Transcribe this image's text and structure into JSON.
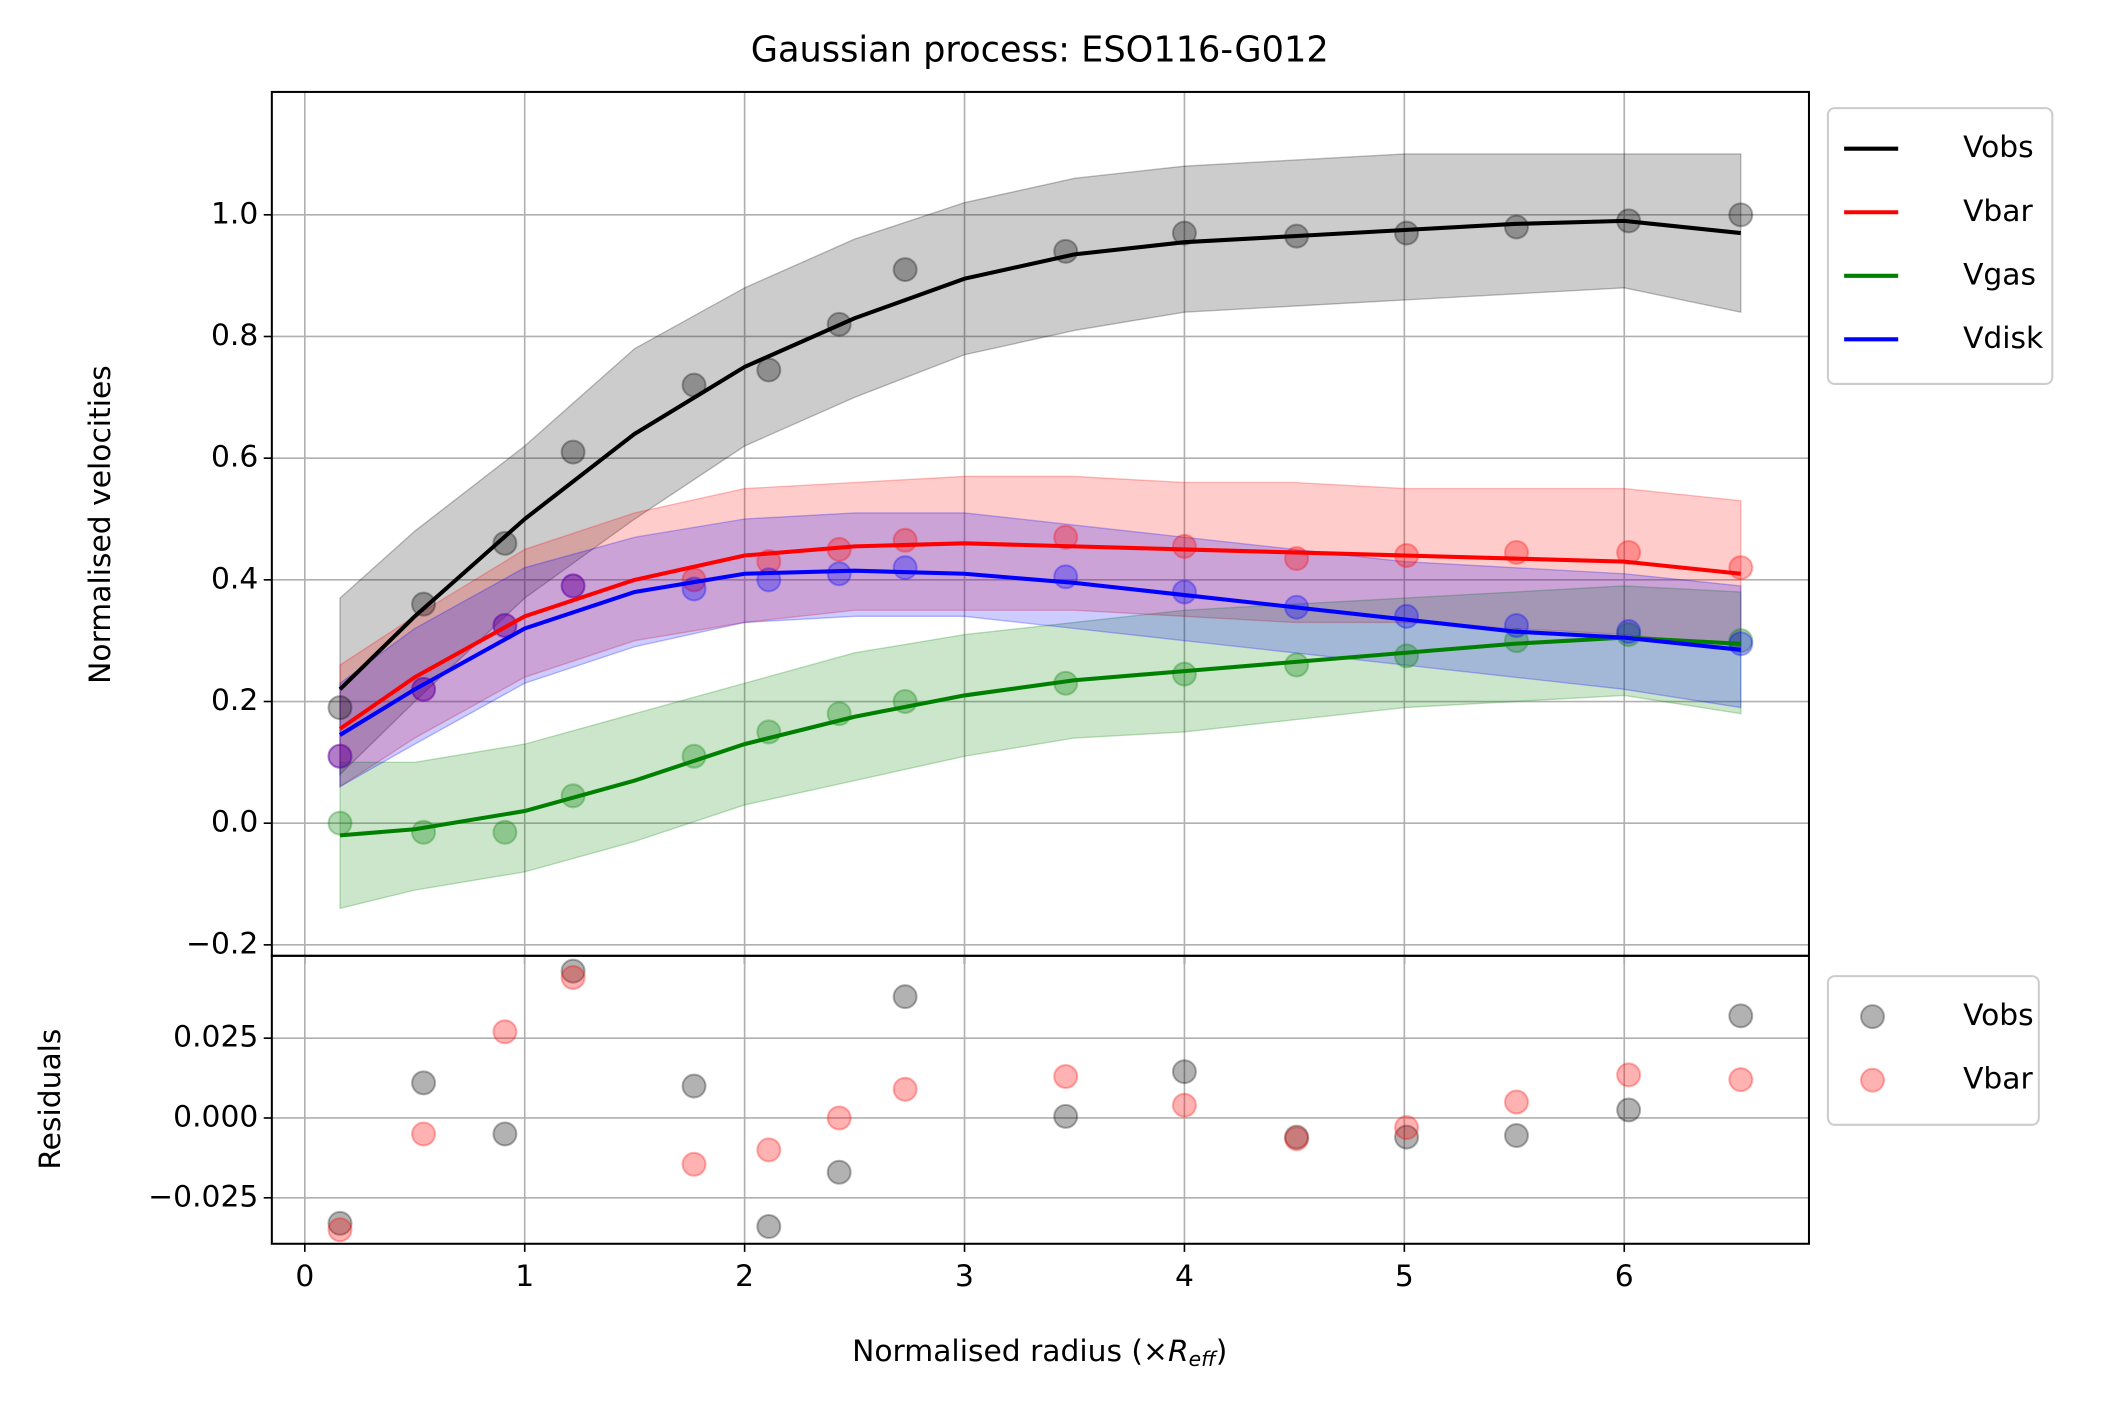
{
  "chart_data": [
    {
      "type": "line",
      "title": "Gaussian process: ESO116-G012",
      "ylabel": "Normalised velocities",
      "xlim": [
        -0.15,
        6.84
      ],
      "ylim": [
        -0.218,
        1.202
      ],
      "xticks": [
        0,
        1,
        2,
        3,
        4,
        5,
        6
      ],
      "yticks": [
        {
          "value": -0.2,
          "label": "−0.2"
        },
        {
          "value": 0,
          "label": "0.0"
        },
        {
          "value": 0.2,
          "label": "0.2"
        },
        {
          "value": 0.4,
          "label": "0.4"
        },
        {
          "value": 0.6,
          "label": "0.6"
        },
        {
          "value": 0.8,
          "label": "0.8"
        },
        {
          "value": 1.0,
          "label": "1.0"
        }
      ],
      "grid": true,
      "legend": "outside-upper-right",
      "x": [
        0.16,
        0.54,
        0.91,
        1.22,
        1.77,
        2.11,
        2.43,
        2.73,
        3.46,
        4.0,
        4.51,
        5.01,
        5.51,
        6.02,
        6.53
      ],
      "curve_x": [
        0.16,
        0.5,
        1,
        1.5,
        2,
        2.5,
        3,
        3.5,
        4,
        4.5,
        5,
        5.5,
        6,
        6.53
      ],
      "series": [
        {
          "name": "Vobs",
          "color": "#000000",
          "values": [
            0.19,
            0.36,
            0.46,
            0.61,
            0.72,
            0.745,
            0.82,
            0.91,
            0.94,
            0.97,
            0.965,
            0.97,
            0.98,
            0.99,
            1.0
          ],
          "mean": [
            0.22,
            0.34,
            0.5,
            0.64,
            0.75,
            0.83,
            0.895,
            0.935,
            0.955,
            0.965,
            0.975,
            0.985,
            0.99,
            0.97
          ],
          "upper": [
            0.37,
            0.48,
            0.62,
            0.78,
            0.88,
            0.96,
            1.02,
            1.06,
            1.08,
            1.09,
            1.1,
            1.1,
            1.1,
            1.1
          ],
          "lower": [
            0.08,
            0.2,
            0.37,
            0.5,
            0.62,
            0.7,
            0.77,
            0.81,
            0.84,
            0.85,
            0.86,
            0.87,
            0.88,
            0.84
          ]
        },
        {
          "name": "Vbar",
          "color": "#ff0000",
          "values": [
            0.11,
            0.22,
            0.325,
            0.39,
            0.4,
            0.43,
            0.45,
            0.465,
            0.47,
            0.455,
            0.435,
            0.44,
            0.445,
            0.445,
            0.42
          ],
          "mean": [
            0.155,
            0.24,
            0.34,
            0.4,
            0.44,
            0.455,
            0.46,
            0.455,
            0.45,
            0.445,
            0.44,
            0.435,
            0.43,
            0.41
          ],
          "upper": [
            0.26,
            0.34,
            0.45,
            0.51,
            0.55,
            0.56,
            0.57,
            0.57,
            0.56,
            0.56,
            0.55,
            0.55,
            0.55,
            0.53
          ],
          "lower": [
            0.06,
            0.14,
            0.24,
            0.3,
            0.33,
            0.35,
            0.35,
            0.35,
            0.34,
            0.33,
            0.33,
            0.32,
            0.31,
            0.29
          ]
        },
        {
          "name": "Vgas",
          "color": "#008000",
          "values": [
            0.0,
            -0.015,
            -0.015,
            0.045,
            0.11,
            0.15,
            0.18,
            0.2,
            0.23,
            0.245,
            0.26,
            0.275,
            0.3,
            0.31,
            0.3
          ],
          "mean": [
            -0.02,
            -0.01,
            0.02,
            0.07,
            0.13,
            0.175,
            0.21,
            0.235,
            0.25,
            0.265,
            0.28,
            0.295,
            0.305,
            0.295
          ],
          "upper": [
            0.1,
            0.1,
            0.13,
            0.18,
            0.23,
            0.28,
            0.31,
            0.33,
            0.35,
            0.36,
            0.37,
            0.38,
            0.39,
            0.38
          ],
          "lower": [
            -0.14,
            -0.11,
            -0.08,
            -0.03,
            0.03,
            0.07,
            0.11,
            0.14,
            0.15,
            0.17,
            0.19,
            0.2,
            0.21,
            0.18
          ]
        },
        {
          "name": "Vdisk",
          "color": "#0000ff",
          "values": [
            0.11,
            0.22,
            0.325,
            0.39,
            0.385,
            0.4,
            0.41,
            0.42,
            0.405,
            0.38,
            0.355,
            0.34,
            0.325,
            0.315,
            0.295
          ],
          "mean": [
            0.145,
            0.22,
            0.32,
            0.38,
            0.41,
            0.415,
            0.41,
            0.395,
            0.375,
            0.355,
            0.335,
            0.315,
            0.305,
            0.285
          ],
          "upper": [
            0.23,
            0.32,
            0.42,
            0.47,
            0.5,
            0.51,
            0.51,
            0.49,
            0.47,
            0.45,
            0.43,
            0.42,
            0.41,
            0.39
          ],
          "lower": [
            0.06,
            0.13,
            0.23,
            0.29,
            0.33,
            0.34,
            0.34,
            0.32,
            0.3,
            0.28,
            0.26,
            0.24,
            0.22,
            0.19
          ]
        }
      ]
    },
    {
      "type": "scatter",
      "ylabel": "Residuals",
      "xlabel_parts": [
        "Normalised radius (×",
        "R",
        "eff",
        ")"
      ],
      "xlim": [
        -0.15,
        6.84
      ],
      "ylim": [
        -0.0394,
        0.0508
      ],
      "xticks": [
        0,
        1,
        2,
        3,
        4,
        5,
        6
      ],
      "yticks": [
        {
          "value": -0.025,
          "label": "−0.025"
        },
        {
          "value": 0,
          "label": "0.000"
        },
        {
          "value": 0.025,
          "label": "0.025"
        }
      ],
      "grid": true,
      "legend": "outside-upper-right",
      "x": [
        0.16,
        0.54,
        0.91,
        1.22,
        1.77,
        2.11,
        2.43,
        2.73,
        3.46,
        4.0,
        4.51,
        5.01,
        5.51,
        6.02,
        6.53
      ],
      "series": [
        {
          "name": "Vobs",
          "color": "#000000",
          "values": [
            -0.033,
            0.011,
            -0.005,
            0.046,
            0.01,
            -0.034,
            -0.017,
            0.038,
            0.0005,
            0.0145,
            -0.006,
            -0.006,
            -0.0055,
            0.0025,
            0.032
          ]
        },
        {
          "name": "Vbar",
          "color": "#ff0000",
          "values": [
            -0.035,
            -0.005,
            0.027,
            0.044,
            -0.0145,
            -0.01,
            0.0,
            0.009,
            0.013,
            0.004,
            -0.0065,
            -0.003,
            0.005,
            0.0135,
            0.012
          ]
        }
      ]
    }
  ]
}
